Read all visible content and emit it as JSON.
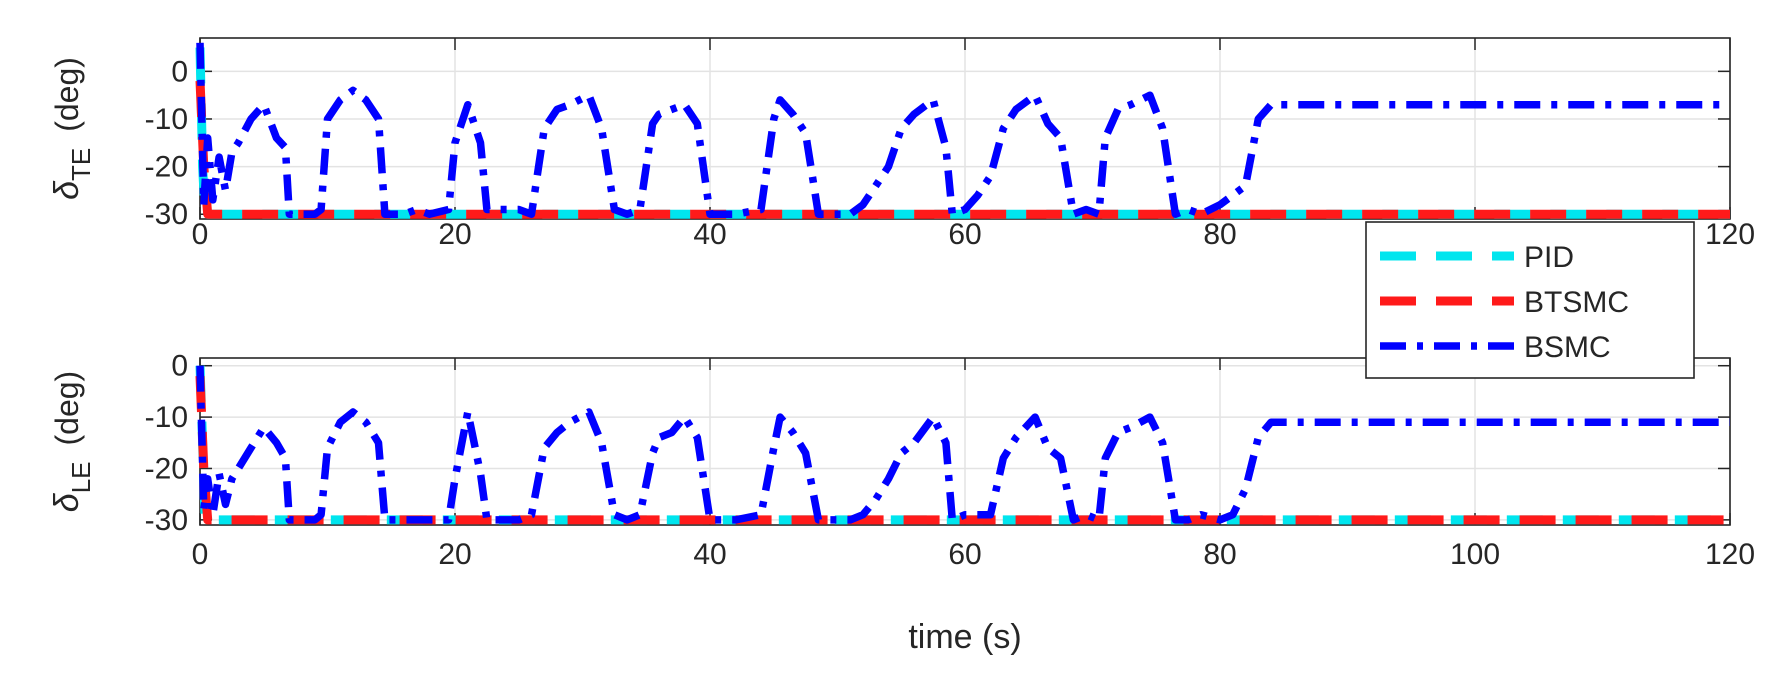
{
  "chart_data": [
    {
      "type": "line",
      "title": "",
      "xlabel": "",
      "ylabel": {
        "symbol": "δ",
        "subscript": "TE",
        "unit": "(deg)"
      },
      "xlim": [
        0,
        120
      ],
      "ylim": [
        -31,
        7
      ],
      "x_ticks": [
        0,
        20,
        40,
        60,
        80,
        100,
        120
      ],
      "x_tick_labels": [
        "0",
        "20",
        "40",
        "60",
        "80",
        "",
        "120"
      ],
      "y_ticks": [
        0,
        -10,
        -20,
        -30
      ],
      "y_tick_labels": [
        "0",
        "-10",
        "-20",
        "-30"
      ],
      "grid": true,
      "series": [
        {
          "name": "PID",
          "color": "#00e5ee",
          "style": "dashed",
          "x": [
            0,
            0.2,
            0.4,
            0.6,
            120
          ],
          "y": [
            5,
            -20,
            -30,
            -30,
            -30
          ]
        },
        {
          "name": "BTSMC",
          "color": "#ff1a1a",
          "style": "dashed",
          "x": [
            0,
            0.3,
            0.6,
            120
          ],
          "y": [
            -2,
            -20,
            -30,
            -30
          ]
        },
        {
          "name": "BSMC",
          "color": "#0000ff",
          "style": "dashdot",
          "x": [
            0,
            0.3,
            0.6,
            1,
            1.5,
            2,
            2.5,
            3,
            4,
            5,
            6,
            6.7,
            7,
            8,
            9,
            9.5,
            10,
            11,
            12,
            13,
            14,
            14.5,
            15,
            16,
            17,
            18,
            19.5,
            20,
            21,
            22,
            22.5,
            24,
            25,
            26,
            27,
            28,
            29,
            30.5,
            31.5,
            32.5,
            33.5,
            34.5,
            35.5,
            36,
            37,
            38,
            39,
            40,
            40.5,
            42,
            44,
            45,
            45.5,
            46.5,
            47.5,
            48.5,
            49,
            51,
            52,
            53,
            54,
            55,
            56,
            57.5,
            58.5,
            59,
            60,
            61,
            62,
            63,
            64,
            65.5,
            66.5,
            67.5,
            68.5,
            69.5,
            70.5,
            71,
            72,
            73,
            74.5,
            75.5,
            76.5,
            77.5,
            78.5,
            80,
            81,
            82,
            83,
            84,
            86,
            120
          ],
          "y": [
            6,
            -28,
            -14,
            -27,
            -18,
            -25,
            -17,
            -15,
            -10,
            -7,
            -14,
            -16,
            -30,
            -30,
            -30,
            -29,
            -10,
            -6,
            -4,
            -6,
            -10,
            -30,
            -30,
            -30,
            -29,
            -30,
            -29,
            -15,
            -7,
            -15,
            -29,
            -29,
            -29,
            -30,
            -12,
            -8,
            -7,
            -5,
            -12,
            -29,
            -30,
            -29,
            -11,
            -9,
            -8,
            -7,
            -11,
            -30,
            -30,
            -30,
            -29,
            -10,
            -6,
            -9,
            -13,
            -30,
            -30,
            -30,
            -28,
            -24,
            -20,
            -12,
            -9,
            -6,
            -16,
            -30,
            -29,
            -26,
            -22,
            -12,
            -8,
            -5,
            -11,
            -14,
            -30,
            -29,
            -30,
            -14,
            -8,
            -7,
            -5,
            -12,
            -30,
            -29,
            -30,
            -28,
            -26,
            -24,
            -10,
            -7,
            -7,
            -7
          ]
        }
      ]
    },
    {
      "type": "line",
      "title": "",
      "xlabel": "time (s)",
      "ylabel": {
        "symbol": "δ",
        "subscript": "LE",
        "unit": "(deg)"
      },
      "xlim": [
        0,
        120
      ],
      "ylim": [
        -31,
        1.5
      ],
      "x_ticks": [
        0,
        20,
        40,
        60,
        80,
        100,
        120
      ],
      "x_tick_labels": [
        "0",
        "20",
        "40",
        "60",
        "80",
        "100",
        "120"
      ],
      "y_ticks": [
        0,
        -10,
        -20,
        -30
      ],
      "y_tick_labels": [
        "0",
        "-10",
        "-20",
        "-30"
      ],
      "grid": true,
      "series": [
        {
          "name": "PID",
          "color": "#00e5ee",
          "style": "dashed",
          "x": [
            0,
            0.2,
            0.4,
            0.6,
            120
          ],
          "y": [
            0,
            -15,
            -30,
            -30,
            -30
          ]
        },
        {
          "name": "BTSMC",
          "color": "#ff1a1a",
          "style": "dashed",
          "x": [
            0,
            0.3,
            0.6,
            120
          ],
          "y": [
            -2,
            -20,
            -30,
            -30
          ]
        },
        {
          "name": "BSMC",
          "color": "#0000ff",
          "style": "dashdot",
          "x": [
            0,
            0.3,
            0.6,
            1,
            1.5,
            2,
            2.5,
            3,
            4,
            5,
            6,
            6.7,
            7,
            8,
            9,
            9.5,
            10,
            11,
            12,
            13,
            14,
            14.5,
            15,
            16,
            17,
            18,
            19.5,
            20,
            21,
            22,
            22.5,
            24,
            25,
            26,
            27,
            28,
            29,
            30.5,
            31.5,
            32.5,
            33.5,
            34.5,
            35.5,
            36,
            37,
            38,
            39,
            40,
            40.5,
            42,
            44,
            45,
            45.5,
            46.5,
            47.5,
            48.5,
            49,
            51,
            52,
            53,
            54,
            55,
            56,
            57.5,
            58.5,
            59,
            60,
            61,
            62,
            63,
            64,
            65.5,
            66.5,
            67.5,
            68.5,
            69.5,
            70.5,
            71,
            72,
            73,
            74.5,
            75.5,
            76.5,
            77.5,
            78.5,
            80,
            81,
            82,
            83,
            84,
            86,
            120
          ],
          "y": [
            0,
            -28,
            -22,
            -29,
            -21,
            -27,
            -22,
            -20,
            -16,
            -12,
            -15,
            -18,
            -30,
            -30,
            -30,
            -29,
            -16,
            -11,
            -9,
            -11,
            -15,
            -30,
            -30,
            -30,
            -30,
            -30,
            -30,
            -22,
            -9,
            -21,
            -30,
            -30,
            -30,
            -29,
            -16,
            -13,
            -11,
            -9,
            -15,
            -29,
            -30,
            -29,
            -17,
            -14,
            -13,
            -10,
            -14,
            -30,
            -30,
            -30,
            -29,
            -16,
            -10,
            -13,
            -17,
            -30,
            -30,
            -30,
            -29,
            -26,
            -22,
            -17,
            -15,
            -10,
            -15,
            -30,
            -29,
            -29,
            -29,
            -18,
            -14,
            -10,
            -16,
            -18,
            -30,
            -29,
            -30,
            -18,
            -13,
            -12,
            -10,
            -15,
            -30,
            -30,
            -29,
            -30,
            -29,
            -24,
            -14,
            -11,
            -11,
            -11
          ]
        }
      ]
    }
  ],
  "legend": {
    "placement": "right, between the two panels",
    "entries": [
      {
        "label": "PID",
        "color": "#00e5ee",
        "style": "dashed"
      },
      {
        "label": "BTSMC",
        "color": "#ff1a1a",
        "style": "dashed"
      },
      {
        "label": "BSMC",
        "color": "#0000ff",
        "style": "dashdot"
      }
    ]
  }
}
